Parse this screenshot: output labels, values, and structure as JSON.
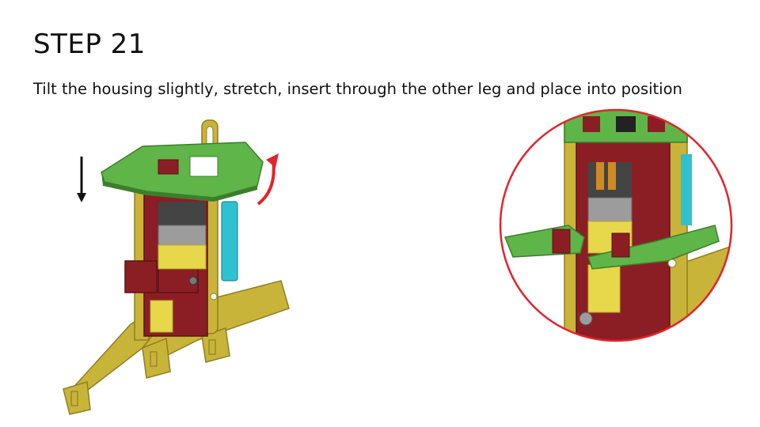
{
  "slide": {
    "title": "STEP 21",
    "instruction": "Tilt the housing slightly, stretch, insert through the other leg and place into position"
  },
  "colors": {
    "plywood": "#c9b43a",
    "plywood_dark": "#8f7f22",
    "housing_red": "#8b1e24",
    "green_plate": "#5fb548",
    "green_dark": "#3c7e2c",
    "motor_yellow": "#e6d84a",
    "motor_silver": "#9c9c9c",
    "cyan_servo": "#2fc1cf",
    "arrow_red": "#e3242b",
    "arrow_black": "#111111",
    "zoom_circle": "#e3242b"
  },
  "icons": {
    "down_arrow": "arrow-down-icon",
    "rotate_arrow": "rotate-arrow-icon"
  }
}
